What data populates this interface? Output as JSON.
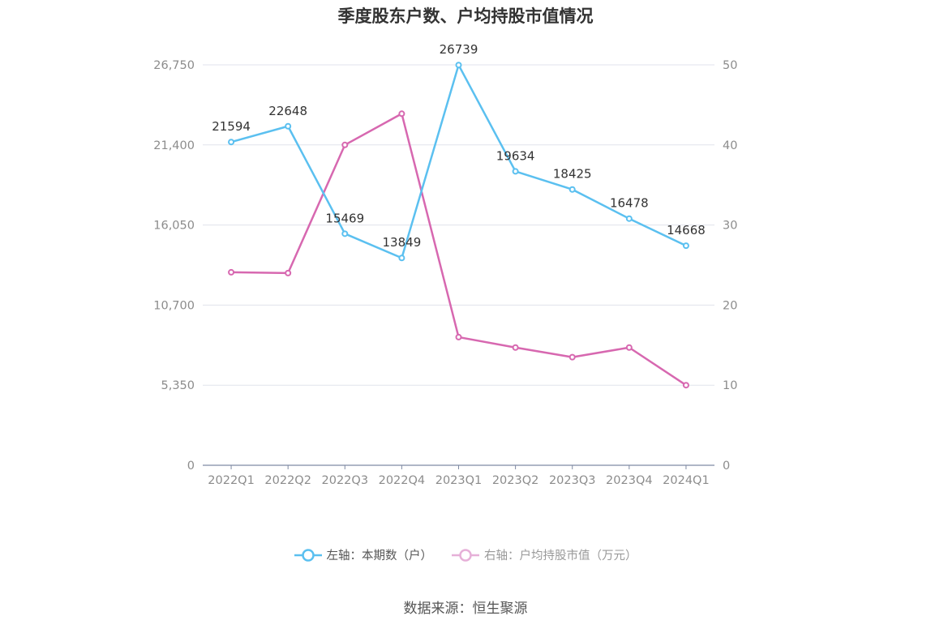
{
  "chart_data": {
    "type": "line",
    "title": "季度股东户数、户均持股市值情况",
    "categories": [
      "2022Q1",
      "2022Q2",
      "2022Q3",
      "2022Q4",
      "2023Q1",
      "2023Q2",
      "2023Q3",
      "2023Q4",
      "2024Q1"
    ],
    "left_axis": {
      "ticks": [
        "0",
        "5,350",
        "10,700",
        "16,050",
        "21,400",
        "26,750"
      ],
      "ylim": [
        0,
        26750
      ]
    },
    "right_axis": {
      "ticks": [
        "0",
        "10",
        "20",
        "30",
        "40",
        "50"
      ],
      "ylim": [
        0,
        50
      ]
    },
    "series": [
      {
        "name": "左轴：本期数（户）",
        "axis": "left",
        "color": "#5bc0f0",
        "values": [
          21594,
          22648,
          15469,
          13849,
          26739,
          19634,
          18425,
          16478,
          14668
        ],
        "labels": [
          "21594",
          "22648",
          "15469",
          "13849",
          "26739",
          "19634",
          "18425",
          "16478",
          "14668"
        ]
      },
      {
        "name": "右轴：户均持股市值（万元）",
        "axis": "right",
        "color": "#d768b0",
        "values": [
          24.1,
          24.0,
          40.0,
          43.9,
          16.0,
          14.7,
          13.5,
          14.7,
          10.0
        ]
      }
    ],
    "grid": true,
    "legend_position": "bottom"
  },
  "source": "数据来源：恒生聚源"
}
